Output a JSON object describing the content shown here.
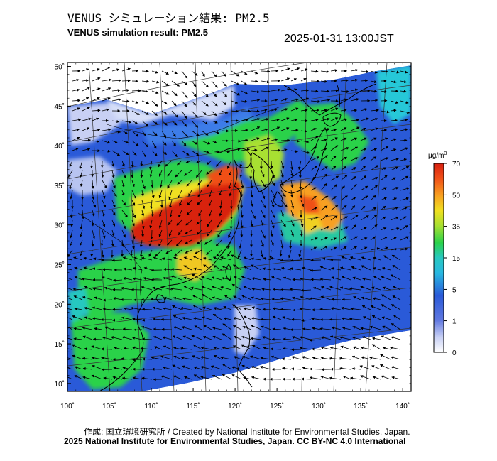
{
  "header": {
    "title_jp": "VENUS シミュレーション結果: PM2.5",
    "title_en": "VENUS simulation result: PM2.5",
    "timestamp": "2025-01-31 13:00JST"
  },
  "map": {
    "lat_labels": [
      "50˚",
      "45˚",
      "40˚",
      "35˚",
      "30˚",
      "25˚",
      "20˚",
      "15˚",
      "10˚"
    ],
    "lon_labels": [
      "100˚",
      "105˚",
      "110˚",
      "115˚",
      "120˚",
      "125˚",
      "130˚",
      "135˚",
      "140˚"
    ],
    "lat_values": [
      50,
      45,
      40,
      35,
      30,
      25,
      20,
      15,
      10
    ],
    "lon_values": [
      100,
      105,
      110,
      115,
      120,
      125,
      130,
      135,
      140
    ],
    "lat_range": [
      9,
      50.5
    ],
    "lon_range": [
      100,
      141
    ],
    "wind_direction": "northwesterly/northeasterly monsoon flow",
    "hotspots": [
      {
        "region": "Central/Eastern China",
        "lon": 113,
        "lat": 30,
        "level": 70
      },
      {
        "region": "Korea/Japan",
        "lon": 128,
        "lat": 33,
        "level": 45
      },
      {
        "region": "Southeast China",
        "lon": 110,
        "lat": 24,
        "level": 35
      }
    ]
  },
  "colorbar": {
    "unit": "μg/m",
    "unit_sup": "3",
    "tick_labels": [
      "70",
      "50",
      "35",
      "15",
      "5",
      "1",
      "0"
    ],
    "tick_values": [
      70,
      50,
      35,
      15,
      5,
      1,
      0
    ],
    "colors": [
      "#ffffff",
      "#d0d8f8",
      "#8098e8",
      "#2a5ad8",
      "#3c8cf0",
      "#28c8d8",
      "#2ad24a",
      "#b8e030",
      "#f0e020",
      "#f8a020",
      "#f05018",
      "#d82010"
    ]
  },
  "footer": {
    "credit": "作成: 国立環境研究所 / Created by National Institute for Environmental Studies, Japan.",
    "copyright": "2025 National Institute for Environmental Studies, Japan. CC BY-NC 4.0 International"
  }
}
